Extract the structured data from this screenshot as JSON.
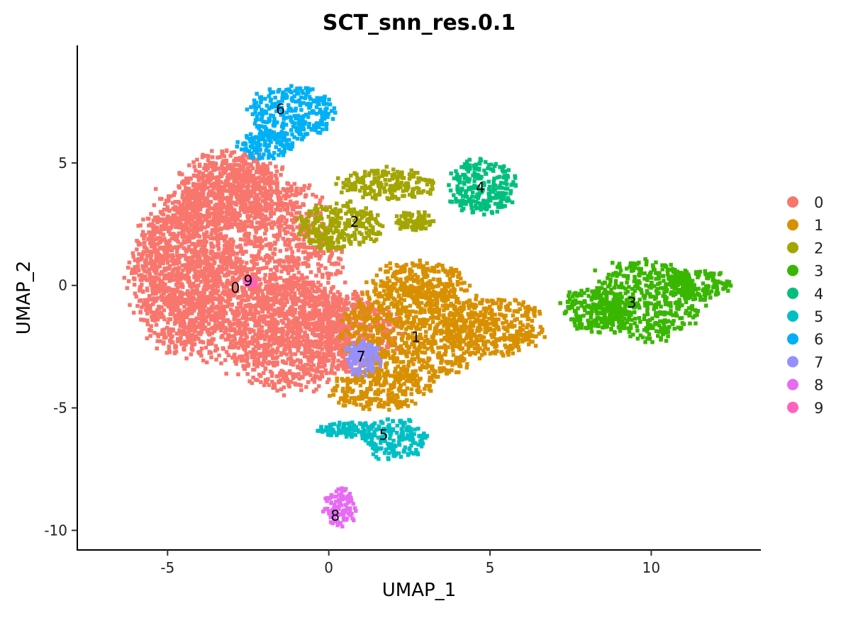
{
  "chart_data": {
    "type": "scatter",
    "title": "SCT_snn_res.0.1",
    "xlabel": "UMAP_1",
    "ylabel": "UMAP_2",
    "xlim": [
      -7.8,
      13.4
    ],
    "ylim": [
      -10.8,
      9.8
    ],
    "x_ticks": [
      -5,
      0,
      5,
      10
    ],
    "y_ticks": [
      5,
      0,
      -5,
      -10
    ],
    "grid": false,
    "legend_position": "right",
    "legend": [
      "0",
      "1",
      "2",
      "3",
      "4",
      "5",
      "6",
      "7",
      "8",
      "9"
    ],
    "colors": {
      "0": "#F8766D",
      "1": "#D89000",
      "2": "#A3A500",
      "3": "#39B600",
      "4": "#00BF7D",
      "5": "#00BFC4",
      "6": "#00B0F6",
      "7": "#9590FF",
      "8": "#E76BF3",
      "9": "#FF62BC"
    },
    "clusters": [
      {
        "id": "0",
        "label_pos": [
          -2.9,
          -0.1
        ],
        "blobs": [
          [
            -2.8,
            1.0,
            2.9,
            4.0
          ],
          [
            -4.6,
            0.5,
            1.6,
            3.0
          ],
          [
            -1.2,
            -2.0,
            2.0,
            2.2
          ],
          [
            -3.2,
            4.0,
            1.5,
            1.6
          ],
          [
            0.5,
            -1.8,
            1.6,
            1.6
          ]
        ]
      },
      {
        "id": "1",
        "label_pos": [
          2.7,
          -2.1
        ],
        "blobs": [
          [
            2.5,
            -1.8,
            2.2,
            2.0
          ],
          [
            5.0,
            -1.6,
            1.6,
            1.2
          ],
          [
            2.8,
            0.2,
            1.5,
            0.8
          ],
          [
            1.5,
            -4.2,
            1.5,
            0.8
          ]
        ]
      },
      {
        "id": "2",
        "label_pos": [
          0.8,
          2.6
        ],
        "blobs": [
          [
            0.3,
            2.5,
            1.3,
            1.0
          ],
          [
            1.8,
            4.2,
            1.5,
            0.6
          ],
          [
            2.6,
            2.7,
            0.6,
            0.4
          ]
        ]
      },
      {
        "id": "3",
        "label_pos": [
          9.4,
          -0.7
        ],
        "blobs": [
          [
            9.8,
            -0.5,
            1.7,
            1.6
          ],
          [
            11.4,
            0.1,
            1.0,
            0.6
          ],
          [
            8.3,
            -0.9,
            1.1,
            0.9
          ]
        ]
      },
      {
        "id": "4",
        "label_pos": [
          4.7,
          4.0
        ],
        "blobs": [
          [
            4.7,
            4.1,
            1.1,
            1.1
          ]
        ]
      },
      {
        "id": "5",
        "label_pos": [
          1.7,
          -6.1
        ],
        "blobs": [
          [
            2.0,
            -6.2,
            1.0,
            0.8
          ],
          [
            0.5,
            -5.8,
            1.0,
            0.3
          ]
        ]
      },
      {
        "id": "6",
        "label_pos": [
          -1.5,
          7.2
        ],
        "blobs": [
          [
            -1.2,
            7.1,
            1.3,
            1.1
          ],
          [
            -2.0,
            5.8,
            0.8,
            0.6
          ]
        ]
      },
      {
        "id": "7",
        "label_pos": [
          1.0,
          -2.9
        ],
        "blobs": [
          [
            1.0,
            -2.9,
            0.55,
            0.7
          ]
        ]
      },
      {
        "id": "8",
        "label_pos": [
          0.2,
          -9.4
        ],
        "blobs": [
          [
            0.3,
            -9.0,
            0.5,
            0.8
          ]
        ]
      },
      {
        "id": "9",
        "label_pos": [
          -2.5,
          0.2
        ],
        "blobs": [
          [
            -2.5,
            0.2,
            0.18,
            0.18
          ]
        ]
      }
    ]
  }
}
